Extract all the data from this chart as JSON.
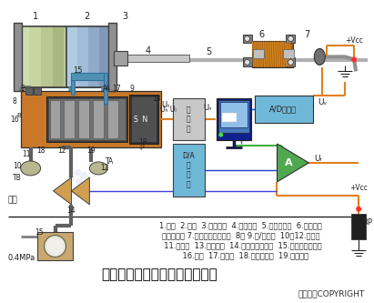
{
  "title": "直滑式电位器控制气缸活塞行程",
  "copyright": "东方仿真COPYRIGHT",
  "caption_line1": "1.气缸  2.活塞  3.直线轴承  4.气缸推杆  5.电位器滑杆  6.直滑式电",
  "caption_line2": "位器传感器 7.滑动触点（电刷）  8、 9.进/出气孔  10、12.消音器",
  "caption_line3": "  11.进气孔  13.电磁线圈  14.电动比例调节阀  15.气源处理三联件",
  "caption_line4": "    16.阀心  17.阀心杆  18.电磁阀壳体  19.永久磁铁",
  "bg_color": "#ffffff",
  "title_fontsize": 11,
  "caption_fontsize": 6.0,
  "copyright_fontsize": 6.5
}
